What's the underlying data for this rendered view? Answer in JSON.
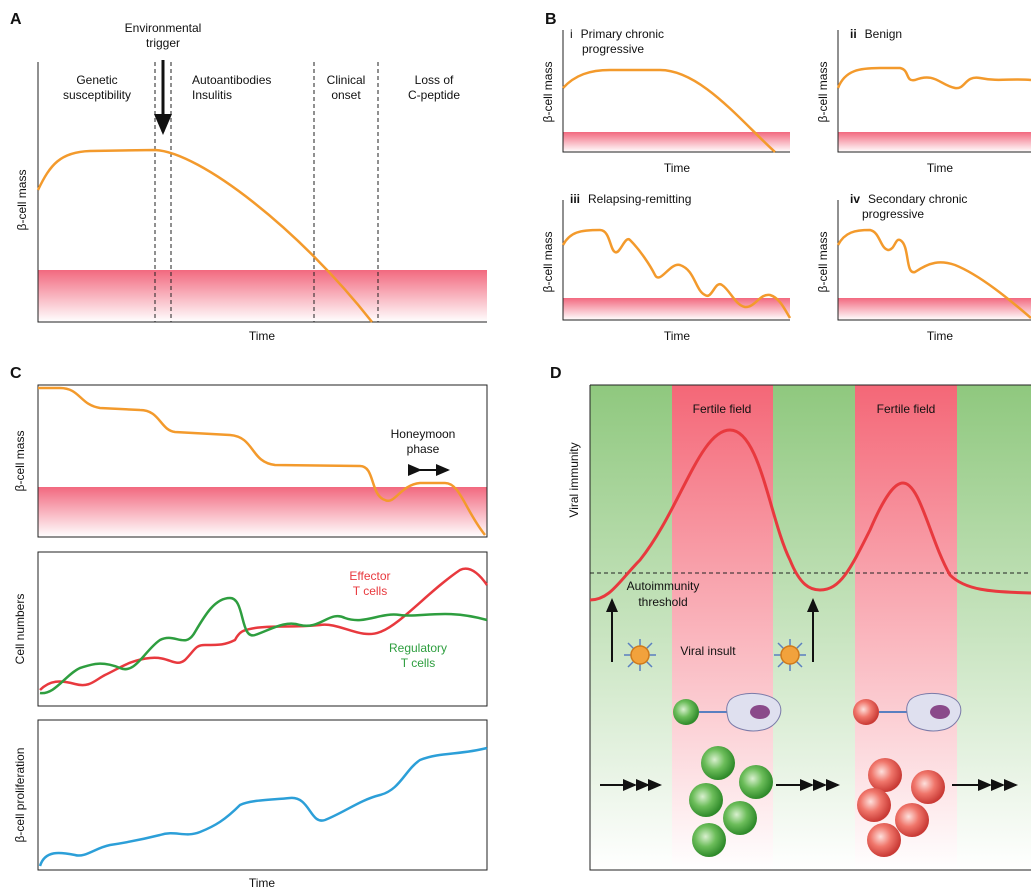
{
  "panel_a": {
    "letter": "A",
    "trigger": [
      "Environmental",
      "trigger"
    ],
    "stages": [
      [
        "Genetic",
        "susceptibility"
      ],
      [
        "Autoantibodies",
        "Insulitis"
      ],
      [
        "Clinical",
        "onset"
      ],
      [
        "Loss of",
        "C-peptide"
      ]
    ],
    "y_label": "β-cell mass",
    "x_label": "Time"
  },
  "panel_b": {
    "letter": "B",
    "subpanels": [
      {
        "numeral": "i",
        "title": [
          "Primary chronic",
          "progressive"
        ],
        "y_label": "β-cell mass",
        "x_label": "Time"
      },
      {
        "numeral": "ii",
        "title": [
          "Benign"
        ],
        "y_label": "β-cell mass",
        "x_label": "Time"
      },
      {
        "numeral": "iii",
        "title": [
          "Relapsing-remitting"
        ],
        "y_label": "β-cell mass",
        "x_label": "Time"
      },
      {
        "numeral": "iv",
        "title": [
          "Secondary chronic",
          "progressive"
        ],
        "y_label": "β-cell mass",
        "x_label": "Time"
      }
    ]
  },
  "panel_c": {
    "letter": "C",
    "top": {
      "y_label": "β-cell mass",
      "annotation": [
        "Honeymoon",
        "phase"
      ]
    },
    "middle": {
      "y_label": "Cell numbers",
      "effector": [
        "Effector",
        "T cells"
      ],
      "regulatory": [
        "Regulatory",
        "T cells"
      ]
    },
    "bottom": {
      "y_label": "β-cell proliferation",
      "x_label": "Time"
    }
  },
  "panel_d": {
    "letter": "D",
    "y_label": "Viral immunity",
    "fields": [
      "Fertile field",
      "Fertile field"
    ],
    "threshold": [
      "Autoimmunity",
      "threshold"
    ],
    "insult": "Viral insult"
  }
}
